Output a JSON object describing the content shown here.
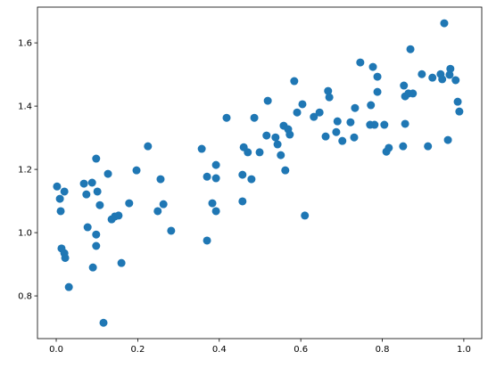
{
  "chart_data": {
    "type": "scatter",
    "series": [
      {
        "color": "#1f77b4",
        "x": [
          0.002,
          0.009,
          0.011,
          0.02,
          0.013,
          0.02,
          0.022,
          0.031,
          0.068,
          0.074,
          0.077,
          0.088,
          0.09,
          0.098,
          0.101,
          0.098,
          0.098,
          0.107,
          0.116,
          0.127,
          0.136,
          0.144,
          0.153,
          0.16,
          0.179,
          0.197,
          0.225,
          0.249,
          0.256,
          0.263,
          0.282,
          0.357,
          0.37,
          0.37,
          0.383,
          0.392,
          0.392,
          0.392,
          0.418,
          0.457,
          0.457,
          0.46,
          0.47,
          0.479,
          0.486,
          0.499,
          0.516,
          0.519,
          0.538,
          0.543,
          0.551,
          0.558,
          0.562,
          0.569,
          0.573,
          0.584,
          0.591,
          0.604,
          0.61,
          0.632,
          0.646,
          0.661,
          0.667,
          0.67,
          0.687,
          0.69,
          0.702,
          0.722,
          0.731,
          0.733,
          0.746,
          0.77,
          0.772,
          0.777,
          0.781,
          0.788,
          0.788,
          0.805,
          0.81,
          0.816,
          0.851,
          0.853,
          0.856,
          0.856,
          0.864,
          0.869,
          0.875,
          0.897,
          0.912,
          0.923,
          0.943,
          0.947,
          0.952,
          0.961,
          0.965,
          0.967,
          0.98,
          0.985,
          0.989
        ],
        "values": [
          1.146,
          1.107,
          1.068,
          1.13,
          0.95,
          0.935,
          0.92,
          0.828,
          1.155,
          1.121,
          1.017,
          1.158,
          0.89,
          1.234,
          1.13,
          0.994,
          0.958,
          1.087,
          0.715,
          1.186,
          1.042,
          1.051,
          1.054,
          0.904,
          1.093,
          1.197,
          1.273,
          1.068,
          1.169,
          1.09,
          1.006,
          1.265,
          0.975,
          1.177,
          1.093,
          1.172,
          1.214,
          1.068,
          1.363,
          1.183,
          1.099,
          1.27,
          1.254,
          1.169,
          1.363,
          1.254,
          1.307,
          1.417,
          1.301,
          1.279,
          1.245,
          1.338,
          1.197,
          1.327,
          1.31,
          1.479,
          1.38,
          1.406,
          1.054,
          1.366,
          1.38,
          1.304,
          1.448,
          1.428,
          1.318,
          1.352,
          1.29,
          1.349,
          1.301,
          1.394,
          1.538,
          1.341,
          1.403,
          1.524,
          1.341,
          1.445,
          1.493,
          1.341,
          1.256,
          1.268,
          1.273,
          1.465,
          1.344,
          1.431,
          1.44,
          1.58,
          1.44,
          1.501,
          1.273,
          1.49,
          1.501,
          1.485,
          1.662,
          1.293,
          1.499,
          1.518,
          1.482,
          1.414,
          1.383
        ]
      }
    ],
    "xlim": [
      -0.046,
      1.044
    ],
    "ylim": [
      0.665,
      1.713
    ],
    "xticks": [
      {
        "value": 0,
        "label": "0.0"
      },
      0.2,
      0.4,
      0.6,
      0.8,
      {
        "value": 1,
        "label": "1.0"
      }
    ],
    "yticks": [
      0.8,
      {
        "value": 1,
        "label": "1.0"
      },
      1.2,
      1.4,
      1.6
    ]
  }
}
